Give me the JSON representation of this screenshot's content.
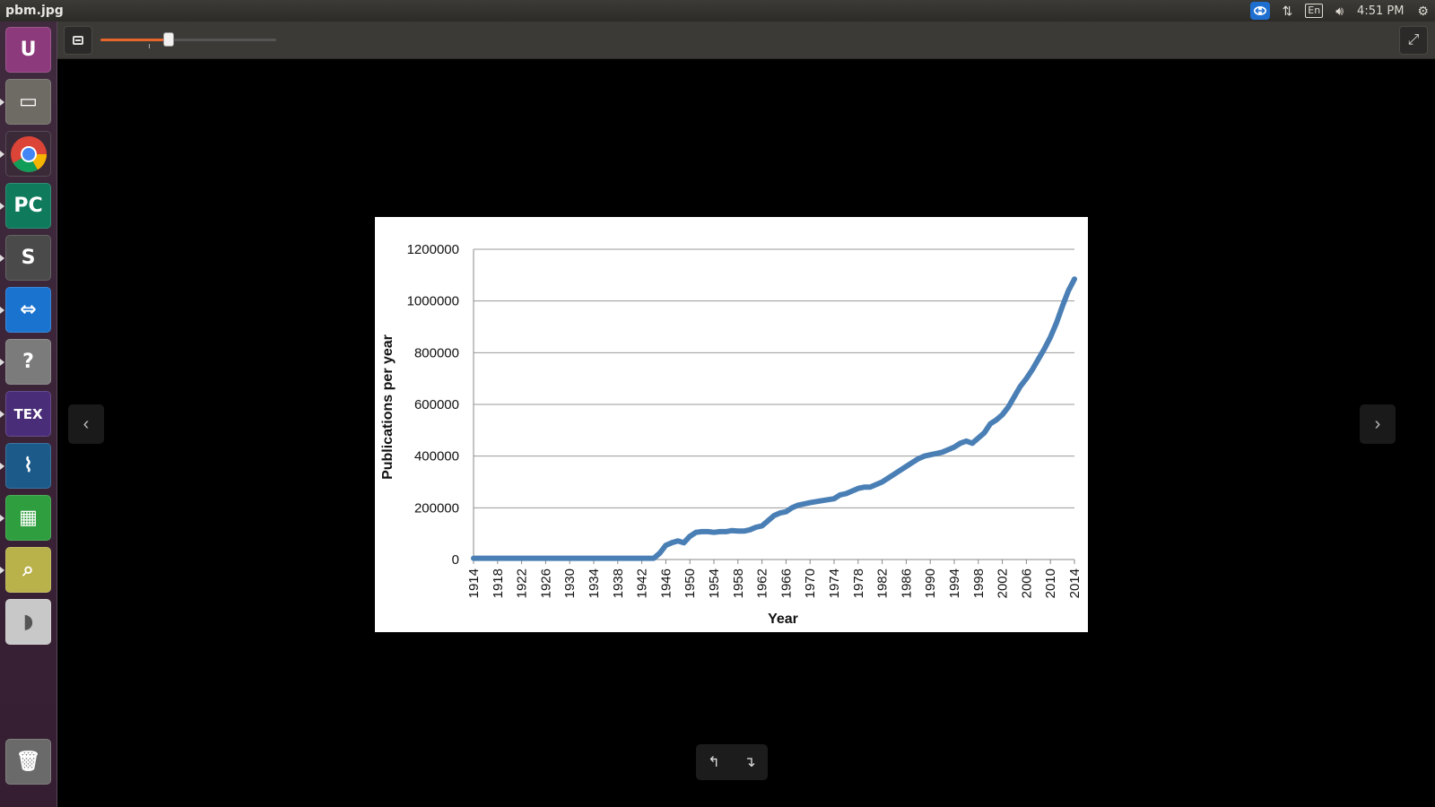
{
  "window": {
    "title": "pbm.jpg"
  },
  "panel": {
    "language": "En",
    "clock": "4:51 PM"
  },
  "launcher": {
    "items": [
      {
        "name": "ubuntu-dash-icon",
        "label": "U",
        "bg": "#8d3a7c"
      },
      {
        "name": "files-icon",
        "label": "▭",
        "bg": "#6e6a64"
      },
      {
        "name": "chrome-icon",
        "label": "",
        "bg": "#4285f4"
      },
      {
        "name": "pycharm-icon",
        "label": "PC",
        "bg": "#0f7a5c"
      },
      {
        "name": "sublime-text-icon",
        "label": "S",
        "bg": "#4a4a4a"
      },
      {
        "name": "teamviewer-icon",
        "label": "⇔",
        "bg": "#1b73d0"
      },
      {
        "name": "help-icon",
        "label": "?",
        "bg": "#7b7b7b"
      },
      {
        "name": "texmaker-icon",
        "label": "TEX",
        "bg": "#4a2d78"
      },
      {
        "name": "mysql-workbench-icon",
        "label": "⌇",
        "bg": "#1c5a8a"
      },
      {
        "name": "calc-spreadsheet-icon",
        "label": "▦",
        "bg": "#2e9e3e"
      },
      {
        "name": "image-viewer-icon",
        "label": "⌕",
        "bg": "#b9b14a"
      },
      {
        "name": "drive-icon",
        "label": "◗",
        "bg": "#c8c8c8"
      },
      {
        "name": "trash-icon",
        "label": "🗑",
        "bg": "#6a6a6a"
      }
    ]
  },
  "viewer": {
    "zoom_level": 0.39
  },
  "chart_data": {
    "type": "line",
    "title": "",
    "xlabel": "Year",
    "ylabel": "Publications per year",
    "ylim": [
      0,
      1200000
    ],
    "yticks": [
      "1200000",
      "1000000",
      "800000",
      "600000",
      "400000",
      "200000",
      "0"
    ],
    "xticks": [
      "1914",
      "1918",
      "1922",
      "1926",
      "1930",
      "1934",
      "1938",
      "1942",
      "1946",
      "1950",
      "1954",
      "1958",
      "1962",
      "1966",
      "1970",
      "1974",
      "1978",
      "1982",
      "1986",
      "1990",
      "1994",
      "1998",
      "2002",
      "2006",
      "2010",
      "2014"
    ],
    "grid": true,
    "line_color": "#4a7fb5",
    "series": [
      {
        "name": "",
        "x": [
          1914,
          1920,
          1930,
          1940,
          1944,
          1945,
          1946,
          1947,
          1948,
          1949,
          1950,
          1951,
          1952,
          1953,
          1954,
          1955,
          1956,
          1957,
          1958,
          1959,
          1960,
          1961,
          1962,
          1963,
          1964,
          1965,
          1966,
          1967,
          1968,
          1969,
          1970,
          1972,
          1974,
          1975,
          1976,
          1977,
          1978,
          1979,
          1980,
          1981,
          1982,
          1983,
          1984,
          1985,
          1986,
          1987,
          1988,
          1989,
          1990,
          1991,
          1992,
          1993,
          1994,
          1995,
          1996,
          1997,
          1998,
          1999,
          2000,
          2001,
          2002,
          2003,
          2004,
          2005,
          2006,
          2007,
          2008,
          2009,
          2010,
          2011,
          2012,
          2013,
          2014
        ],
        "y": [
          5000,
          5000,
          5000,
          5000,
          5000,
          25000,
          55000,
          65000,
          72000,
          65000,
          90000,
          105000,
          108000,
          108000,
          105000,
          108000,
          108000,
          112000,
          110000,
          110000,
          115000,
          125000,
          130000,
          150000,
          170000,
          180000,
          185000,
          200000,
          210000,
          215000,
          220000,
          228000,
          235000,
          250000,
          255000,
          265000,
          275000,
          280000,
          280000,
          290000,
          300000,
          315000,
          330000,
          345000,
          360000,
          375000,
          390000,
          400000,
          405000,
          410000,
          415000,
          425000,
          435000,
          450000,
          458000,
          450000,
          470000,
          490000,
          525000,
          540000,
          560000,
          590000,
          630000,
          670000,
          700000,
          735000,
          775000,
          815000,
          860000,
          915000,
          980000,
          1040000,
          1085000
        ]
      }
    ]
  }
}
